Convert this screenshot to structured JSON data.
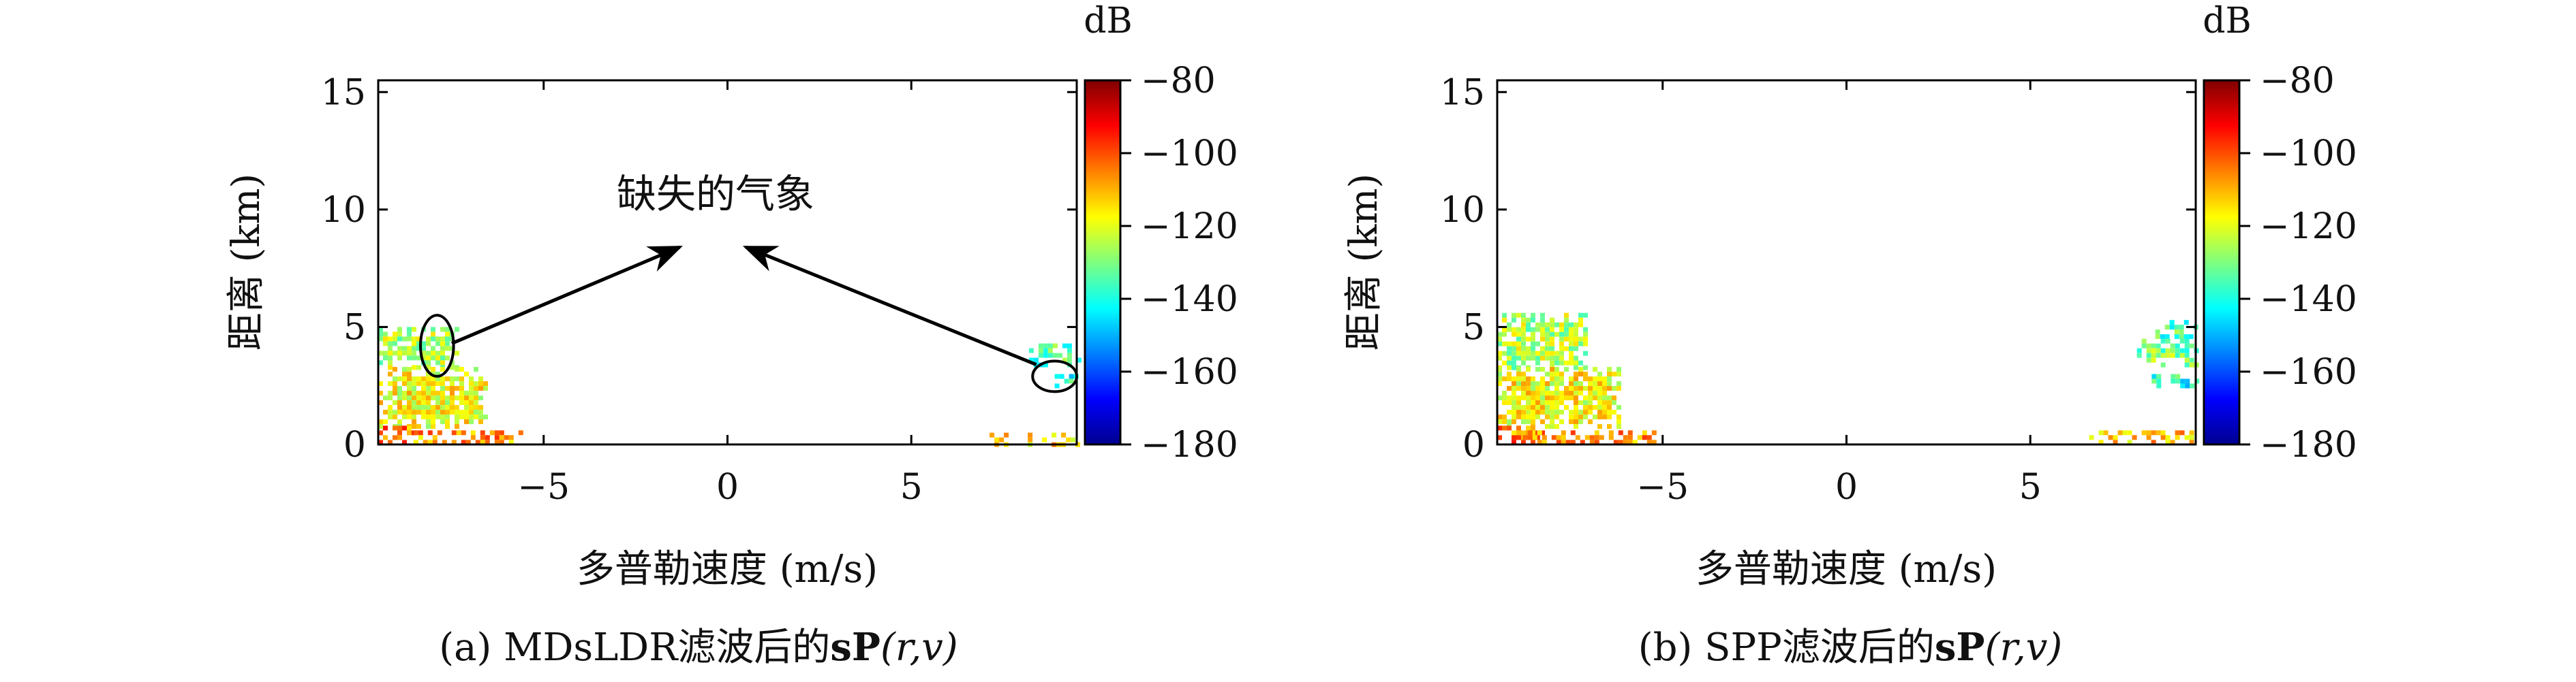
{
  "figure": {
    "panels": [
      {
        "caption": "(a) MDsLDR滤波后的sP(r,v)",
        "caption_prefix": "(a) MDsLDR滤波后的",
        "caption_bold": "sP",
        "caption_suffix": "(r,v)",
        "annotation": "缺失的气象"
      },
      {
        "caption": "(b) SPP滤波后的sP(r,v)",
        "caption_prefix": "(b) SPP滤波后的",
        "caption_bold": "sP",
        "caption_suffix": "(r,v)"
      }
    ]
  },
  "chart_data": [
    {
      "type": "heatmap",
      "title": "",
      "xlabel": "多普勒速度 (m/s)",
      "ylabel": "距离 (km)",
      "xlim": [
        -9.5,
        9.5
      ],
      "ylim": [
        0,
        15.5
      ],
      "xticks": [
        -5,
        0,
        5
      ],
      "xtick_labels": [
        "−5",
        "0",
        "5"
      ],
      "yticks": [
        0,
        5,
        10,
        15
      ],
      "ytick_labels": [
        "0",
        "5",
        "10",
        "15"
      ],
      "colorbar": {
        "unit": "dB",
        "range": [
          -180,
          -80
        ],
        "ticks": [
          -80,
          -100,
          -120,
          -140,
          -160,
          -180
        ],
        "tick_labels": [
          "−80",
          "−100",
          "−120",
          "−140",
          "−160",
          "−180"
        ],
        "colormap": "jet"
      },
      "regions": [
        {
          "v": [
            -9.5,
            -7.4
          ],
          "r": [
            3.3,
            5.0
          ],
          "level_db": -125
        },
        {
          "v": [
            -9.5,
            -6.6
          ],
          "r": [
            0.8,
            3.3
          ],
          "level_db": -118
        },
        {
          "v": [
            -9.5,
            -8.5
          ],
          "r": [
            0.0,
            0.8
          ],
          "level_db": -105
        },
        {
          "v": [
            -8.8,
            -5.6
          ],
          "r": [
            0.0,
            0.6
          ],
          "level_db": -108
        },
        {
          "v": [
            8.2,
            9.5
          ],
          "r": [
            3.4,
            4.3
          ],
          "level_db": -135
        },
        {
          "v": [
            8.9,
            9.5
          ],
          "r": [
            2.5,
            3.0
          ],
          "level_db": -140
        },
        {
          "v": [
            7.0,
            9.5
          ],
          "r": [
            0.0,
            0.5
          ],
          "level_db": -115
        }
      ],
      "annotations": [
        {
          "text": "缺失的气象",
          "at": [
            0.0,
            10.6
          ]
        },
        {
          "type": "ellipse",
          "center": [
            -7.9,
            4.2
          ],
          "radius_v": 0.45,
          "radius_r": 1.3
        },
        {
          "type": "ellipse",
          "center": [
            8.9,
            2.9
          ],
          "radius_v": 0.6,
          "radius_r": 0.65
        },
        {
          "type": "arrow",
          "from": [
            -7.5,
            4.3
          ],
          "to": [
            -1.3,
            8.4
          ]
        },
        {
          "type": "arrow",
          "from": [
            8.4,
            3.4
          ],
          "to": [
            0.5,
            8.4
          ]
        }
      ],
      "grid": false,
      "legend": "none"
    },
    {
      "type": "heatmap",
      "title": "",
      "xlabel": "多普勒速度 (m/s)",
      "ylabel": "距离 (km)",
      "xlim": [
        -9.5,
        9.5
      ],
      "ylim": [
        0,
        15.5
      ],
      "xticks": [
        -5,
        0,
        5
      ],
      "xtick_labels": [
        "−5",
        "0",
        "5"
      ],
      "yticks": [
        0,
        5,
        10,
        15
      ],
      "ytick_labels": [
        "0",
        "5",
        "10",
        "15"
      ],
      "colorbar": {
        "unit": "dB",
        "range": [
          -180,
          -80
        ],
        "ticks": [
          -80,
          -100,
          -120,
          -140,
          -160,
          -180
        ],
        "tick_labels": [
          "−80",
          "−100",
          "−120",
          "−140",
          "−160",
          "−180"
        ],
        "colormap": "jet"
      },
      "regions": [
        {
          "v": [
            -9.5,
            -7.1
          ],
          "r": [
            3.3,
            5.6
          ],
          "level_db": -125
        },
        {
          "v": [
            -9.5,
            -6.2
          ],
          "r": [
            0.8,
            3.3
          ],
          "level_db": -118
        },
        {
          "v": [
            -9.5,
            -8.3
          ],
          "r": [
            0.0,
            0.8
          ],
          "level_db": -105
        },
        {
          "v": [
            -8.8,
            -5.2
          ],
          "r": [
            0.0,
            0.6
          ],
          "level_db": -108
        },
        {
          "v": [
            8.4,
            9.5
          ],
          "r": [
            4.6,
            5.3
          ],
          "level_db": -135
        },
        {
          "v": [
            7.9,
            9.5
          ],
          "r": [
            3.3,
            4.5
          ],
          "level_db": -130
        },
        {
          "v": [
            8.3,
            9.5
          ],
          "r": [
            2.4,
            3.0
          ],
          "level_db": -140
        },
        {
          "v": [
            6.6,
            9.5
          ],
          "r": [
            0.0,
            0.6
          ],
          "level_db": -112
        }
      ],
      "annotations": [],
      "grid": false,
      "legend": "none"
    }
  ]
}
